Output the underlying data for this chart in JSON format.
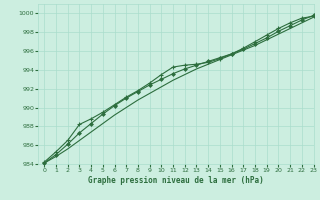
{
  "title": "Graphe pression niveau de la mer (hPa)",
  "background_color": "#cceee0",
  "grid_color": "#aaddcc",
  "line_color": "#2d6e3e",
  "xlim": [
    -0.5,
    23
  ],
  "ylim": [
    984,
    1001
  ],
  "xticks": [
    0,
    1,
    2,
    3,
    4,
    5,
    6,
    7,
    8,
    9,
    10,
    11,
    12,
    13,
    14,
    15,
    16,
    17,
    18,
    19,
    20,
    21,
    22,
    23
  ],
  "yticks": [
    984,
    986,
    988,
    990,
    992,
    994,
    996,
    998,
    1000
  ],
  "line1_x": [
    0,
    1,
    2,
    3,
    4,
    5,
    6,
    7,
    8,
    9,
    10,
    11,
    12,
    13,
    14,
    15,
    16,
    17,
    18,
    19,
    20,
    21,
    22,
    23
  ],
  "line1_y": [
    984.2,
    985.3,
    986.5,
    988.2,
    988.8,
    989.5,
    990.3,
    991.1,
    991.8,
    992.6,
    993.5,
    994.3,
    994.5,
    994.6,
    994.8,
    995.2,
    995.7,
    996.3,
    997.0,
    997.7,
    998.4,
    999.0,
    999.5,
    999.7
  ],
  "line2_x": [
    0,
    1,
    2,
    3,
    4,
    5,
    6,
    7,
    8,
    9,
    10,
    11,
    12,
    13,
    14,
    15,
    16,
    17,
    18,
    19,
    20,
    21,
    22,
    23
  ],
  "line2_y": [
    984.1,
    985.0,
    986.1,
    987.3,
    988.3,
    989.3,
    990.2,
    991.0,
    991.7,
    992.4,
    993.0,
    993.6,
    994.1,
    994.5,
    994.9,
    995.3,
    995.7,
    996.2,
    996.8,
    997.4,
    998.1,
    998.7,
    999.3,
    999.8
  ],
  "line3_x": [
    0,
    1,
    2,
    3,
    4,
    5,
    6,
    7,
    8,
    9,
    10,
    11,
    12,
    13,
    14,
    15,
    16,
    17,
    18,
    19,
    20,
    21,
    22,
    23
  ],
  "line3_y": [
    984.1,
    984.8,
    985.6,
    986.5,
    987.4,
    988.3,
    989.2,
    990.0,
    990.8,
    991.5,
    992.2,
    992.9,
    993.5,
    994.1,
    994.6,
    995.1,
    995.6,
    996.1,
    996.6,
    997.2,
    997.8,
    998.4,
    999.0,
    999.6
  ]
}
